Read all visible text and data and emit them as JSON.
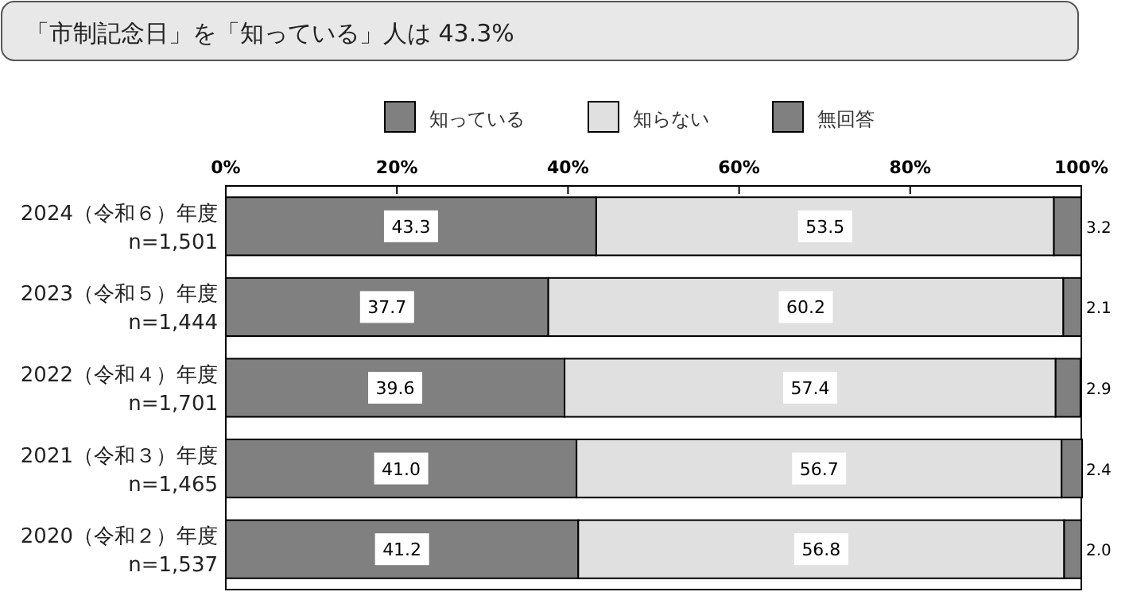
{
  "chart_data": {
    "type": "bar",
    "orientation": "horizontal",
    "stacked": true,
    "title": "「市制記念日」を「知っている」人は 43.3%",
    "categories": [
      "2024（令和６）年度\nn=1,501",
      "2023（令和５）年度\nn=1,444",
      "2022（令和４）年度\nn=1,701",
      "2021（令和３）年度\nn=1,465",
      "2020（令和２）年度\nn=1,537"
    ],
    "series": [
      {
        "name": "知っている",
        "color": "#808080",
        "values": [
          43.3,
          37.7,
          39.6,
          41.0,
          41.2
        ],
        "value_labels": [
          "43.3",
          "37.7",
          "39.6",
          "41.0",
          "41.2"
        ]
      },
      {
        "name": "知らない",
        "color": "#e0e0e0",
        "values": [
          53.5,
          60.2,
          57.4,
          56.7,
          56.8
        ],
        "value_labels": [
          "53.5",
          "60.2",
          "57.4",
          "56.7",
          "56.8"
        ]
      },
      {
        "name": "無回答",
        "color": "#808080",
        "values": [
          3.2,
          2.1,
          2.9,
          2.4,
          2.0
        ],
        "value_labels": [
          "3.2",
          "2.1",
          "2.9",
          "2.4",
          "2.0"
        ]
      }
    ],
    "xlim": [
      0,
      100
    ],
    "xticks": [
      {
        "value": 0,
        "label": "0%"
      },
      {
        "value": 20,
        "label": "20%"
      },
      {
        "value": 40,
        "label": "40%"
      },
      {
        "value": 60,
        "label": "60%"
      },
      {
        "value": 80,
        "label": "80%"
      },
      {
        "value": 100,
        "label": "100%"
      }
    ],
    "legend": "top",
    "grid": false
  }
}
